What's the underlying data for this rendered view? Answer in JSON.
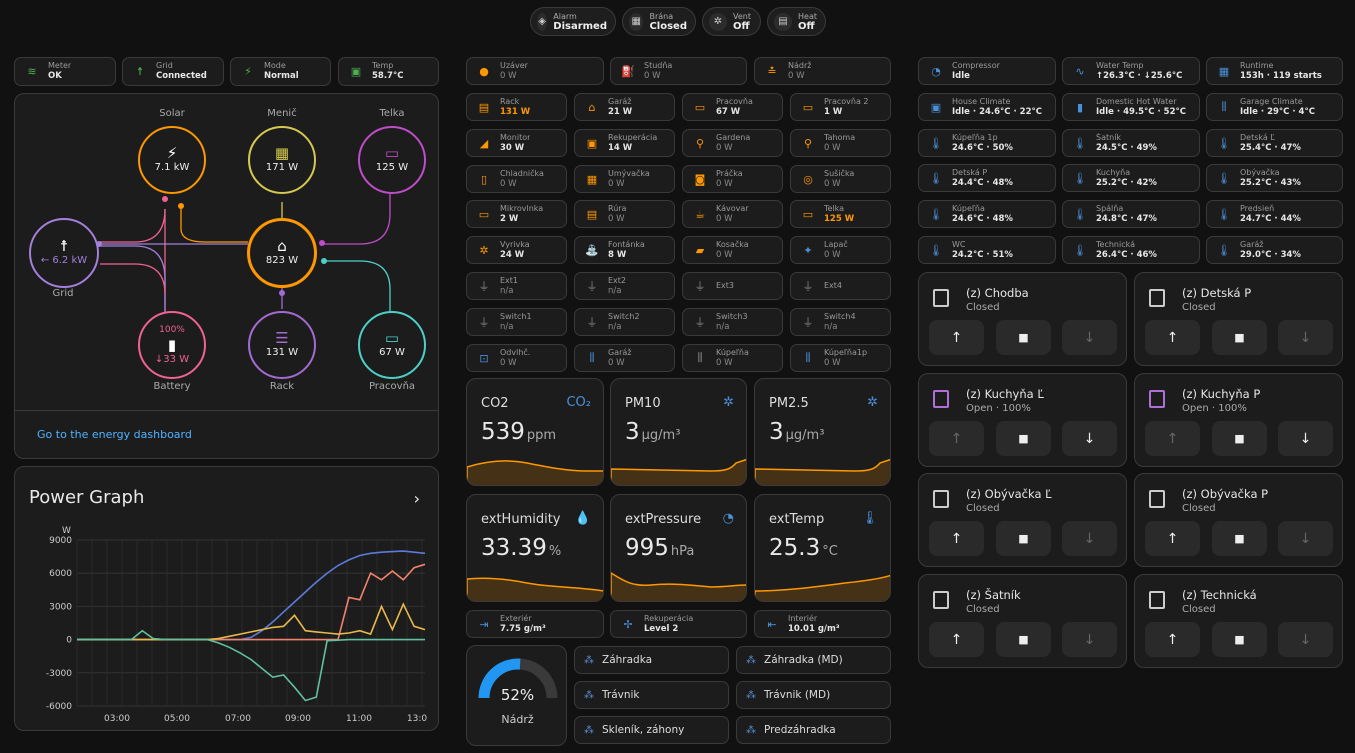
{
  "top_pills": [
    {
      "title": "Alarm",
      "value": "Disarmed",
      "icon": "shield-icon"
    },
    {
      "title": "Brána",
      "value": "Closed",
      "icon": "gate-icon"
    },
    {
      "title": "Vent",
      "value": "Off",
      "icon": "fan-icon"
    },
    {
      "title": "Heat",
      "value": "Off",
      "icon": "heater-icon"
    }
  ],
  "status_tiles": [
    {
      "name": "Meter",
      "state": "OK",
      "icon": "wifi-icon",
      "color": "#4caf50"
    },
    {
      "name": "Grid",
      "state": "Connected",
      "icon": "transmission-tower-icon",
      "color": "#4caf50"
    },
    {
      "name": "Mode",
      "state": "Normal",
      "icon": "solar-power-icon",
      "color": "#4caf50"
    },
    {
      "name": "Temp",
      "state": "58.7°C",
      "icon": "chip-icon",
      "color": "#4caf50"
    }
  ],
  "energy": {
    "solar": {
      "label": "Solar",
      "value": "7.1 kW"
    },
    "inverter": {
      "label": "Menič",
      "value": "171 W"
    },
    "tv": {
      "label": "Telka",
      "value": "125 W"
    },
    "grid": {
      "label": "Grid",
      "value": "← 6.2 kW"
    },
    "home": {
      "value": "823 W"
    },
    "battery": {
      "label": "Battery",
      "percent": "100%",
      "value": "↓33 W"
    },
    "rack": {
      "label": "Rack",
      "value": "131 W"
    },
    "office": {
      "label": "Pracovňa",
      "value": "67 W"
    },
    "link": "Go to the energy dashboard",
    "colors": {
      "solar": "#ff9800",
      "grid": "#a280db",
      "battery": "#f06292",
      "home": "#ff9800",
      "inverter": "#d4c94e",
      "tv": "#c04cc9",
      "rack": "#a36bd1",
      "office": "#4dd0c8"
    }
  },
  "power_graph": {
    "title": "Power Graph",
    "chart_data": {
      "type": "line",
      "ylabel": "W",
      "ylim": [
        -6000,
        9000
      ],
      "yticks": [
        "9000",
        "6000",
        "3000",
        "0",
        "-3000",
        "-6000"
      ],
      "xticks": [
        "03:00",
        "05:00",
        "07:00",
        "09:00",
        "11:00",
        "13:0"
      ],
      "series": [
        {
          "color": "#5c7bd9",
          "values": [
            0,
            0,
            0,
            0,
            0,
            0,
            0,
            0,
            0,
            0,
            0,
            0,
            0,
            0,
            0,
            0,
            200,
            800,
            1600,
            2500,
            3400,
            4300,
            5200,
            6000,
            6700,
            7200,
            7600,
            7800,
            7900,
            7950,
            8000,
            7900,
            7800
          ]
        },
        {
          "color": "#f0826e",
          "values": [
            0,
            0,
            0,
            0,
            0,
            0,
            0,
            0,
            0,
            0,
            0,
            0,
            0,
            0,
            0,
            0,
            0,
            0,
            0,
            0,
            0,
            0,
            0,
            0,
            0,
            3800,
            3600,
            6000,
            5400,
            6200,
            5400,
            6500,
            6800
          ]
        },
        {
          "color": "#e8b84a",
          "values": [
            0,
            0,
            0,
            0,
            0,
            0,
            0,
            0,
            0,
            0,
            0,
            0,
            0,
            100,
            300,
            500,
            700,
            900,
            1100,
            1200,
            2200,
            800,
            700,
            600,
            500,
            600,
            800,
            500,
            3000,
            900,
            3200,
            1200,
            900
          ]
        },
        {
          "color": "#60c0a0",
          "values": [
            0,
            0,
            0,
            0,
            0,
            0,
            800,
            100,
            0,
            0,
            0,
            0,
            0,
            -300,
            -700,
            -1200,
            -1800,
            -2600,
            -3400,
            -3200,
            -4300,
            -5500,
            -5200,
            -100,
            -50,
            0,
            0,
            0,
            0,
            0,
            0,
            0,
            0
          ]
        }
      ]
    }
  },
  "devices": [
    {
      "name": "Uzáver",
      "state": "0 W",
      "icon": "valve-icon",
      "color": "#ff9800",
      "active": false
    },
    {
      "name": "Studňa",
      "state": "0 W",
      "icon": "well-pump-icon",
      "color": "#ff9800",
      "active": false
    },
    {
      "name": "Nádrž",
      "state": "0 W",
      "icon": "tank-icon",
      "color": "#ff9800",
      "active": false
    },
    {
      "name": "Rack",
      "state": "131 W",
      "icon": "server-icon",
      "color": "#ff9800",
      "active": true,
      "highlight": true
    },
    {
      "name": "Garáž",
      "state": "21 W",
      "icon": "garage-icon",
      "color": "#ff9800",
      "active": true
    },
    {
      "name": "Pracovňa",
      "state": "67 W",
      "icon": "monitor-icon",
      "color": "#ff9800",
      "active": true
    },
    {
      "name": "Pracovňa 2",
      "state": "1 W",
      "icon": "monitor-icon",
      "color": "#ff9800",
      "active": true
    },
    {
      "name": "Monitor",
      "state": "30 W",
      "icon": "cctv-icon",
      "color": "#ff9800",
      "active": true
    },
    {
      "name": "Rekuperácia",
      "state": "14 W",
      "icon": "hvac-icon",
      "color": "#ff9800",
      "active": true
    },
    {
      "name": "Gardena",
      "state": "0 W",
      "icon": "router-icon",
      "color": "#ff9800",
      "active": false
    },
    {
      "name": "Tahoma",
      "state": "0 W",
      "icon": "router-icon",
      "color": "#ff9800",
      "active": false
    },
    {
      "name": "Chladnička",
      "state": "0 W",
      "icon": "fridge-icon",
      "color": "#ff9800",
      "active": false
    },
    {
      "name": "Umývačka",
      "state": "0 W",
      "icon": "dishwasher-icon",
      "color": "#ff9800",
      "active": false
    },
    {
      "name": "Práčka",
      "state": "0 W",
      "icon": "washing-machine-icon",
      "color": "#ff9800",
      "active": false
    },
    {
      "name": "Sušička",
      "state": "0 W",
      "icon": "dryer-icon",
      "color": "#ff9800",
      "active": false
    },
    {
      "name": "Mikrovlnka",
      "state": "2 W",
      "icon": "microwave-icon",
      "color": "#ff9800",
      "active": true
    },
    {
      "name": "Rúra",
      "state": "0 W",
      "icon": "oven-icon",
      "color": "#ff9800",
      "active": false
    },
    {
      "name": "Kávovar",
      "state": "0 W",
      "icon": "coffee-icon",
      "color": "#ff9800",
      "active": false
    },
    {
      "name": "Telka",
      "state": "125 W",
      "icon": "tv-icon",
      "color": "#ff9800",
      "active": true,
      "highlight": true
    },
    {
      "name": "Vyrivka",
      "state": "24 W",
      "icon": "fan-icon",
      "color": "#ff9800",
      "active": true
    },
    {
      "name": "Fontánka",
      "state": "8 W",
      "icon": "fountain-icon",
      "color": "#ff9800",
      "active": true
    },
    {
      "name": "Kosačka",
      "state": "0 W",
      "icon": "robot-mower-icon",
      "color": "#ff9800",
      "active": false
    },
    {
      "name": "Lapač",
      "state": "0 W",
      "icon": "bug-zapper-icon",
      "color": "#4a90d9",
      "active": false
    },
    {
      "name": "Ext1",
      "state": "n/a",
      "icon": "power-plug-icon",
      "color": "#888",
      "active": false
    },
    {
      "name": "Ext2",
      "state": "n/a",
      "icon": "power-plug-icon",
      "color": "#888",
      "active": false
    },
    {
      "name": "Ext3",
      "state": "",
      "icon": "power-plug-icon",
      "color": "#888",
      "active": false
    },
    {
      "name": "Ext4",
      "state": "",
      "icon": "power-plug-icon",
      "color": "#888",
      "active": false
    },
    {
      "name": "Switch1",
      "state": "n/a",
      "icon": "power-plug-icon",
      "color": "#888",
      "active": false
    },
    {
      "name": "Switch2",
      "state": "n/a",
      "icon": "power-plug-icon",
      "color": "#888",
      "active": false
    },
    {
      "name": "Switch3",
      "state": "n/a",
      "icon": "power-plug-icon",
      "color": "#888",
      "active": false
    },
    {
      "name": "Switch4",
      "state": "n/a",
      "icon": "power-plug-icon",
      "color": "#888",
      "active": false
    },
    {
      "name": "Odvlhč.",
      "state": "0 W",
      "icon": "dehumidifier-icon",
      "color": "#4a90d9",
      "active": false
    },
    {
      "name": "Garáž",
      "state": "0 W",
      "icon": "radiator-icon",
      "color": "#4a90d9",
      "active": false
    },
    {
      "name": "Kúpeľňa",
      "state": "0 W",
      "icon": "radiator-icon",
      "color": "#888",
      "active": false
    },
    {
      "name": "Kúpeľňa1p",
      "state": "0 W",
      "icon": "radiator-icon",
      "color": "#4a90d9",
      "active": false
    }
  ],
  "sensors": [
    {
      "label": "CO2",
      "value": "539",
      "unit": "ppm",
      "icon": "co2-icon"
    },
    {
      "label": "PM10",
      "value": "3",
      "unit": "µg/m³",
      "icon": "virus-icon"
    },
    {
      "label": "PM2.5",
      "value": "3",
      "unit": "µg/m³",
      "icon": "virus-icon"
    },
    {
      "label": "extHumidity",
      "value": "33.39",
      "unit": "%",
      "icon": "water-percent-icon"
    },
    {
      "label": "extPressure",
      "value": "995",
      "unit": "hPa",
      "icon": "gauge-icon"
    },
    {
      "label": "extTemp",
      "value": "25.3",
      "unit": "°C",
      "icon": "thermometer-icon"
    }
  ],
  "air_tiles": [
    {
      "name": "Exteriér",
      "state": "7.75 g/m³",
      "icon": "export-icon"
    },
    {
      "name": "Rekuperácia",
      "state": "Level 2",
      "icon": "fan-icon"
    },
    {
      "name": "Interiér",
      "state": "10.01 g/m³",
      "icon": "import-icon"
    }
  ],
  "tank": {
    "value": "52%",
    "percent": 52,
    "label": "Nádrž"
  },
  "sprinklers": [
    "Záhradka",
    "Záhradka (MD)",
    "Trávnik",
    "Trávnik (MD)",
    "Skleník, záhony",
    "Predzáhradka"
  ],
  "climate_tiles": [
    {
      "name": "Compressor",
      "state": "Idle",
      "icon": "gauge-icon",
      "color": "#4a90d9"
    },
    {
      "name": "Water Temp",
      "state": "↑26.3°C · ↓25.6°C",
      "icon": "wave-icon",
      "color": "#4a90d9"
    },
    {
      "name": "Runtime",
      "state": "153h · 119 starts",
      "icon": "counter-icon",
      "color": "#4a90d9"
    },
    {
      "name": "House Climate",
      "state": "Idle · 24.6°C · 22°C",
      "icon": "thermostat-icon",
      "color": "#4a90d9"
    },
    {
      "name": "Domestic Hot Water",
      "state": "Idle · 49.5°C · 52°C",
      "icon": "water-boiler-icon",
      "color": "#4a90d9"
    },
    {
      "name": "Garage Climate",
      "state": "Idle · 29°C · 4°C",
      "icon": "radiator-icon",
      "color": "#4a90d9"
    },
    {
      "name": "Kúpeľňa 1p",
      "state": "24.6°C · 50%",
      "icon": "thermometer-icon",
      "color": "#4a90d9"
    },
    {
      "name": "Šatník",
      "state": "24.5°C · 49%",
      "icon": "thermometer-icon",
      "color": "#4a90d9"
    },
    {
      "name": "Detská Ľ",
      "state": "25.4°C · 47%",
      "icon": "thermometer-icon",
      "color": "#4a90d9"
    },
    {
      "name": "Detská P",
      "state": "24.4°C · 48%",
      "icon": "thermometer-icon",
      "color": "#4a90d9"
    },
    {
      "name": "Kuchyňa",
      "state": "25.2°C · 42%",
      "icon": "thermometer-icon",
      "color": "#4a90d9"
    },
    {
      "name": "Obývačka",
      "state": "25.2°C · 43%",
      "icon": "thermometer-icon",
      "color": "#4a90d9"
    },
    {
      "name": "Kúpeľňa",
      "state": "24.6°C · 48%",
      "icon": "thermometer-icon",
      "color": "#4a90d9"
    },
    {
      "name": "Spálňa",
      "state": "24.8°C · 47%",
      "icon": "thermometer-icon",
      "color": "#4a90d9"
    },
    {
      "name": "Predsieň",
      "state": "24.7°C · 44%",
      "icon": "thermometer-icon",
      "color": "#4a90d9"
    },
    {
      "name": "WC",
      "state": "24.2°C · 51%",
      "icon": "thermometer-icon",
      "color": "#4a90d9"
    },
    {
      "name": "Technická",
      "state": "26.4°C · 46%",
      "icon": "thermometer-icon",
      "color": "#4a90d9"
    },
    {
      "name": "Garáž",
      "state": "29.0°C · 34%",
      "icon": "thermometer-icon",
      "color": "#4a90d9"
    }
  ],
  "covers": [
    {
      "name": "(z) Chodba",
      "state": "Closed",
      "open": false
    },
    {
      "name": "(z) Detská P",
      "state": "Closed",
      "open": false
    },
    {
      "name": "(z) Kuchyňa Ľ",
      "state": "Open · 100%",
      "open": true
    },
    {
      "name": "(z) Kuchyňa P",
      "state": "Open · 100%",
      "open": true
    },
    {
      "name": "(z) Obývačka Ľ",
      "state": "Closed",
      "open": false
    },
    {
      "name": "(z) Obývačka P",
      "state": "Closed",
      "open": false
    },
    {
      "name": "(z) Šatník",
      "state": "Closed",
      "open": false
    },
    {
      "name": "(z) Technická",
      "state": "Closed",
      "open": false
    }
  ]
}
